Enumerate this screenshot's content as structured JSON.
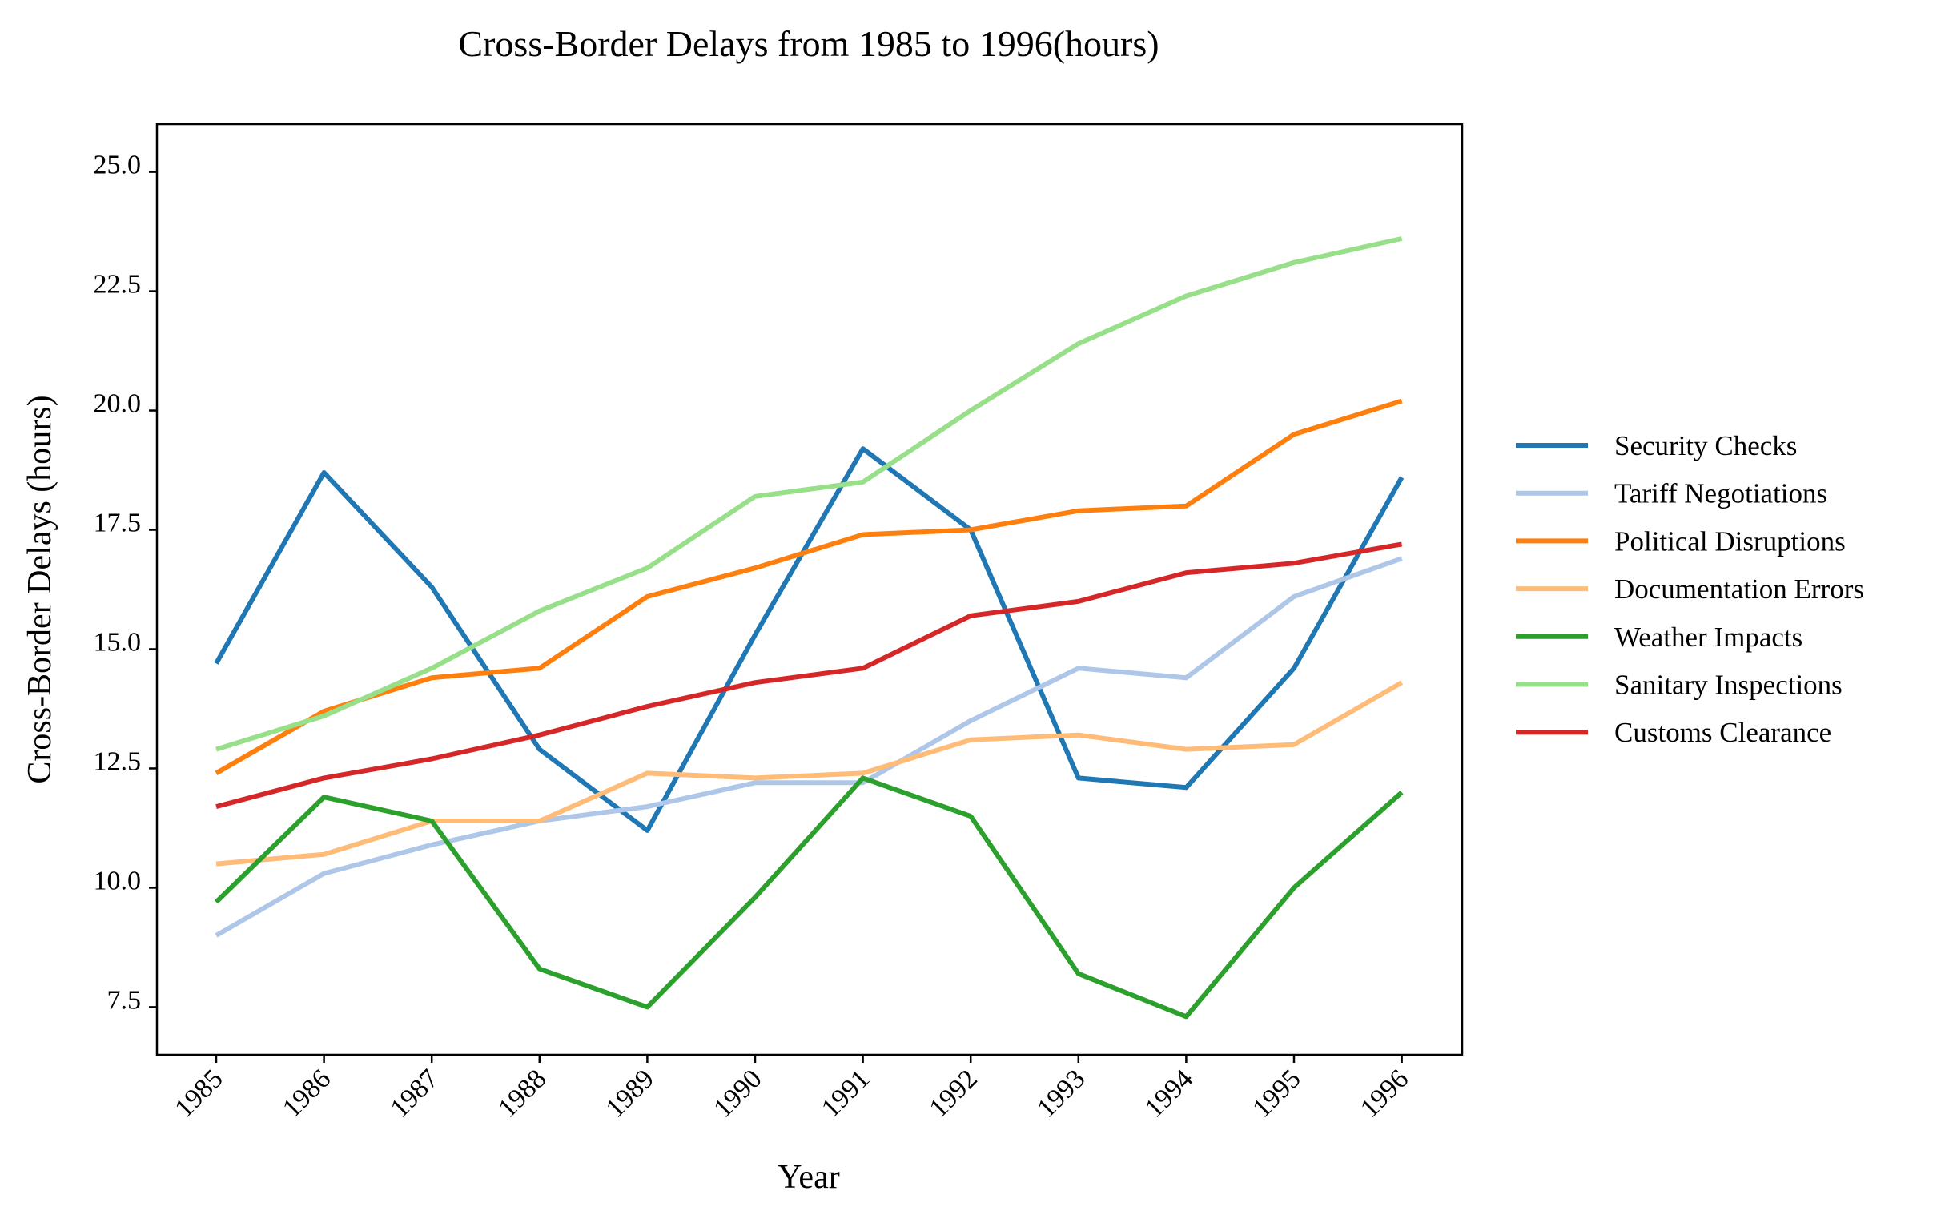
{
  "chart_data": {
    "type": "line",
    "title": "Cross-Border Delays from 1985 to 1996(hours)",
    "xlabel": "Year",
    "ylabel": "Cross-Border Delays (hours)",
    "x": [
      "1985",
      "1986",
      "1987",
      "1988",
      "1989",
      "1990",
      "1991",
      "1992",
      "1993",
      "1994",
      "1995",
      "1996"
    ],
    "ylim": [
      6.5,
      26.0
    ],
    "yticks": [
      "7.5",
      "10.0",
      "12.5",
      "15.0",
      "17.5",
      "20.0",
      "22.5",
      "25.0"
    ],
    "grid": false,
    "legend_position": "right",
    "series": [
      {
        "name": "Security Checks",
        "color": "#1f77b4",
        "values": [
          14.7,
          18.7,
          16.3,
          12.9,
          11.2,
          15.3,
          19.2,
          17.5,
          12.3,
          12.1,
          14.6,
          18.6
        ]
      },
      {
        "name": "Tariff Negotiations",
        "color": "#aec7e8",
        "values": [
          9.0,
          10.3,
          10.9,
          11.4,
          11.7,
          12.2,
          12.2,
          13.5,
          14.6,
          14.4,
          16.1,
          16.9
        ]
      },
      {
        "name": "Political Disruptions",
        "color": "#ff7f0e",
        "values": [
          12.4,
          13.7,
          14.4,
          14.6,
          16.1,
          16.7,
          17.4,
          17.5,
          17.9,
          18.0,
          19.5,
          20.2
        ]
      },
      {
        "name": "Documentation Errors",
        "color": "#ffbb78",
        "values": [
          10.5,
          10.7,
          11.4,
          11.4,
          12.4,
          12.3,
          12.4,
          13.1,
          13.2,
          12.9,
          13.0,
          14.3
        ]
      },
      {
        "name": "Weather Impacts",
        "color": "#2ca02c",
        "values": [
          9.7,
          11.9,
          11.4,
          8.3,
          7.5,
          9.8,
          12.3,
          11.5,
          8.2,
          7.3,
          10.0,
          12.0
        ]
      },
      {
        "name": "Sanitary Inspections",
        "color": "#98df8a",
        "values": [
          12.9,
          13.6,
          14.6,
          15.8,
          16.7,
          18.2,
          18.5,
          20.0,
          21.4,
          22.4,
          23.1,
          23.6
        ]
      },
      {
        "name": "Customs Clearance",
        "color": "#d62728",
        "values": [
          11.7,
          12.3,
          12.7,
          13.2,
          13.8,
          14.3,
          14.6,
          15.7,
          16.0,
          16.6,
          16.8,
          17.2
        ]
      }
    ]
  }
}
